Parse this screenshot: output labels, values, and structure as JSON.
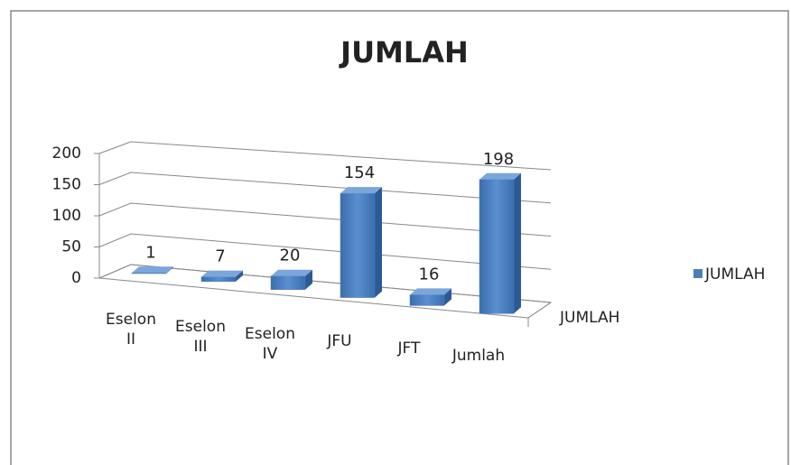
{
  "chart_data": {
    "type": "bar3d",
    "title": "JUMLAH",
    "categories": [
      "Eselon II",
      "Eselon III",
      "Eselon IV",
      "JFU",
      "JFT",
      "Jumlah"
    ],
    "series": [
      {
        "name": "JUMLAH",
        "color": "#4a7ebb",
        "values": [
          1,
          7,
          20,
          154,
          16,
          198
        ]
      }
    ],
    "ylim": [
      0,
      200
    ],
    "yticks": [
      0,
      50,
      100,
      150,
      200
    ],
    "grid": true,
    "legend": "right"
  }
}
